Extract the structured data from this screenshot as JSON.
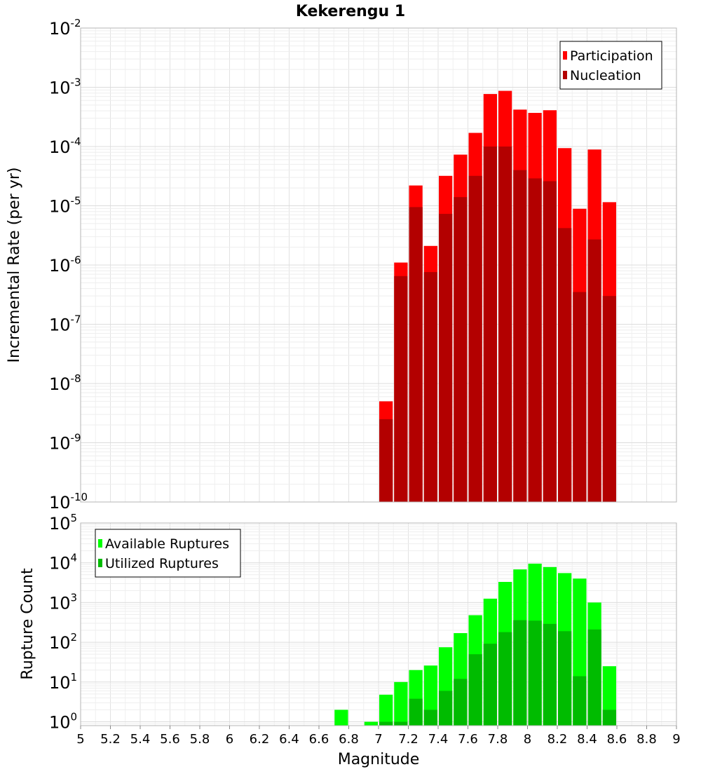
{
  "figure": {
    "title": "Kekerengu 1",
    "xlabel": "Magnitude"
  },
  "chart_data": [
    {
      "type": "bar",
      "ylabel": "Incremental Rate (per yr)",
      "yscale": "log",
      "ylim": [
        1e-10,
        0.01
      ],
      "xlim": [
        5,
        9
      ],
      "grid": true,
      "legend_position": "top-right",
      "x": [
        7.05,
        7.15,
        7.25,
        7.35,
        7.45,
        7.55,
        7.65,
        7.75,
        7.85,
        7.95,
        8.05,
        8.15,
        8.25,
        8.35,
        8.45,
        8.55
      ],
      "series": [
        {
          "name": "Participation",
          "color": "#ff0000",
          "values": [
            5e-09,
            1.1e-06,
            2.2e-05,
            2.1e-06,
            3.2e-05,
            7.3e-05,
            0.00017,
            0.00077,
            0.00087,
            0.00042,
            0.00037,
            0.00041,
            9.4e-05,
            8.9e-06,
            8.9e-05,
            1.15e-05
          ]
        },
        {
          "name": "Nucleation",
          "color": "#b30000",
          "values": [
            2.5e-09,
            6.5e-07,
            9.5e-06,
            7.6e-07,
            7.3e-06,
            1.4e-05,
            3.2e-05,
            0.0001,
            0.0001,
            4e-05,
            2.9e-05,
            2.6e-05,
            4.2e-06,
            3.5e-07,
            2.7e-06,
            3e-07
          ]
        }
      ]
    },
    {
      "type": "bar",
      "ylabel": "Rupture Count",
      "yscale": "log",
      "ylim": [
        0.8,
        100000
      ],
      "xlim": [
        5,
        9
      ],
      "grid": true,
      "legend_position": "top-left",
      "x": [
        6.75,
        6.95,
        7.05,
        7.15,
        7.25,
        7.35,
        7.45,
        7.55,
        7.65,
        7.75,
        7.85,
        7.95,
        8.05,
        8.15,
        8.25,
        8.35,
        8.45,
        8.55
      ],
      "series": [
        {
          "name": "Available Ruptures",
          "color": "#00ff00",
          "values": [
            2,
            1,
            4.8,
            10,
            20,
            26,
            75,
            170,
            480,
            1250,
            3300,
            6800,
            9500,
            7800,
            5500,
            4000,
            1000,
            25
          ]
        },
        {
          "name": "Utilized Ruptures",
          "color": "#00bb00",
          "values": [
            0,
            0,
            1,
            1,
            3.8,
            2,
            6,
            12,
            50,
            92,
            180,
            360,
            350,
            290,
            190,
            14,
            210,
            2
          ]
        }
      ]
    }
  ]
}
